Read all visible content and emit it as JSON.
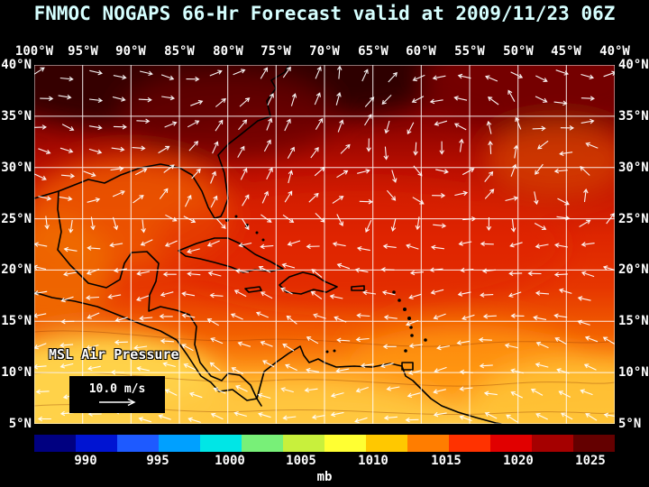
{
  "title": "FNMOC NOGAPS 66-Hr Forecast valid at 2009/11/23 06Z",
  "axes": {
    "lon": [
      "100°W",
      "95°W",
      "90°W",
      "85°W",
      "80°W",
      "75°W",
      "70°W",
      "65°W",
      "60°W",
      "55°W",
      "50°W",
      "45°W",
      "40°W"
    ],
    "lat": [
      "40°N",
      "35°N",
      "30°N",
      "25°N",
      "20°N",
      "15°N",
      "10°N",
      "5°N"
    ]
  },
  "map": {
    "field_label": "MSL Air Pressure",
    "wind_legend_label": "10.0 m/s"
  },
  "colorbar": {
    "unit_label": "mb",
    "ticks": [
      "990",
      "995",
      "1000",
      "1005",
      "1010",
      "1015",
      "1020",
      "1025"
    ],
    "colors": [
      "#000080",
      "#0014d2",
      "#1e5aff",
      "#00a0ff",
      "#00e6e6",
      "#78f078",
      "#c8f03c",
      "#ffff32",
      "#ffc800",
      "#ff7d00",
      "#ff3200",
      "#e10000",
      "#a50000",
      "#640000"
    ]
  },
  "chart_data": {
    "type": "heatmap",
    "title": "FNMOC NOGAPS 66-Hr Forecast valid at 2009/11/23 06Z",
    "field": "MSL Air Pressure",
    "units": "mb",
    "colorbar_ticks": [
      990,
      995,
      1000,
      1005,
      1010,
      1015,
      1020,
      1025
    ],
    "lon_range": [
      "100°W",
      "40°W"
    ],
    "lat_range": [
      "5°N",
      "40°N"
    ],
    "vector_reference": "10.0 m/s",
    "legend_position": "bottom"
  },
  "theme": {
    "background": "#000000",
    "title_color": "#d6ffff",
    "label_color": "#ffffff",
    "grid_color": "#ffffff",
    "coast_color": "#000000",
    "arrow_color": "#ffffff"
  }
}
